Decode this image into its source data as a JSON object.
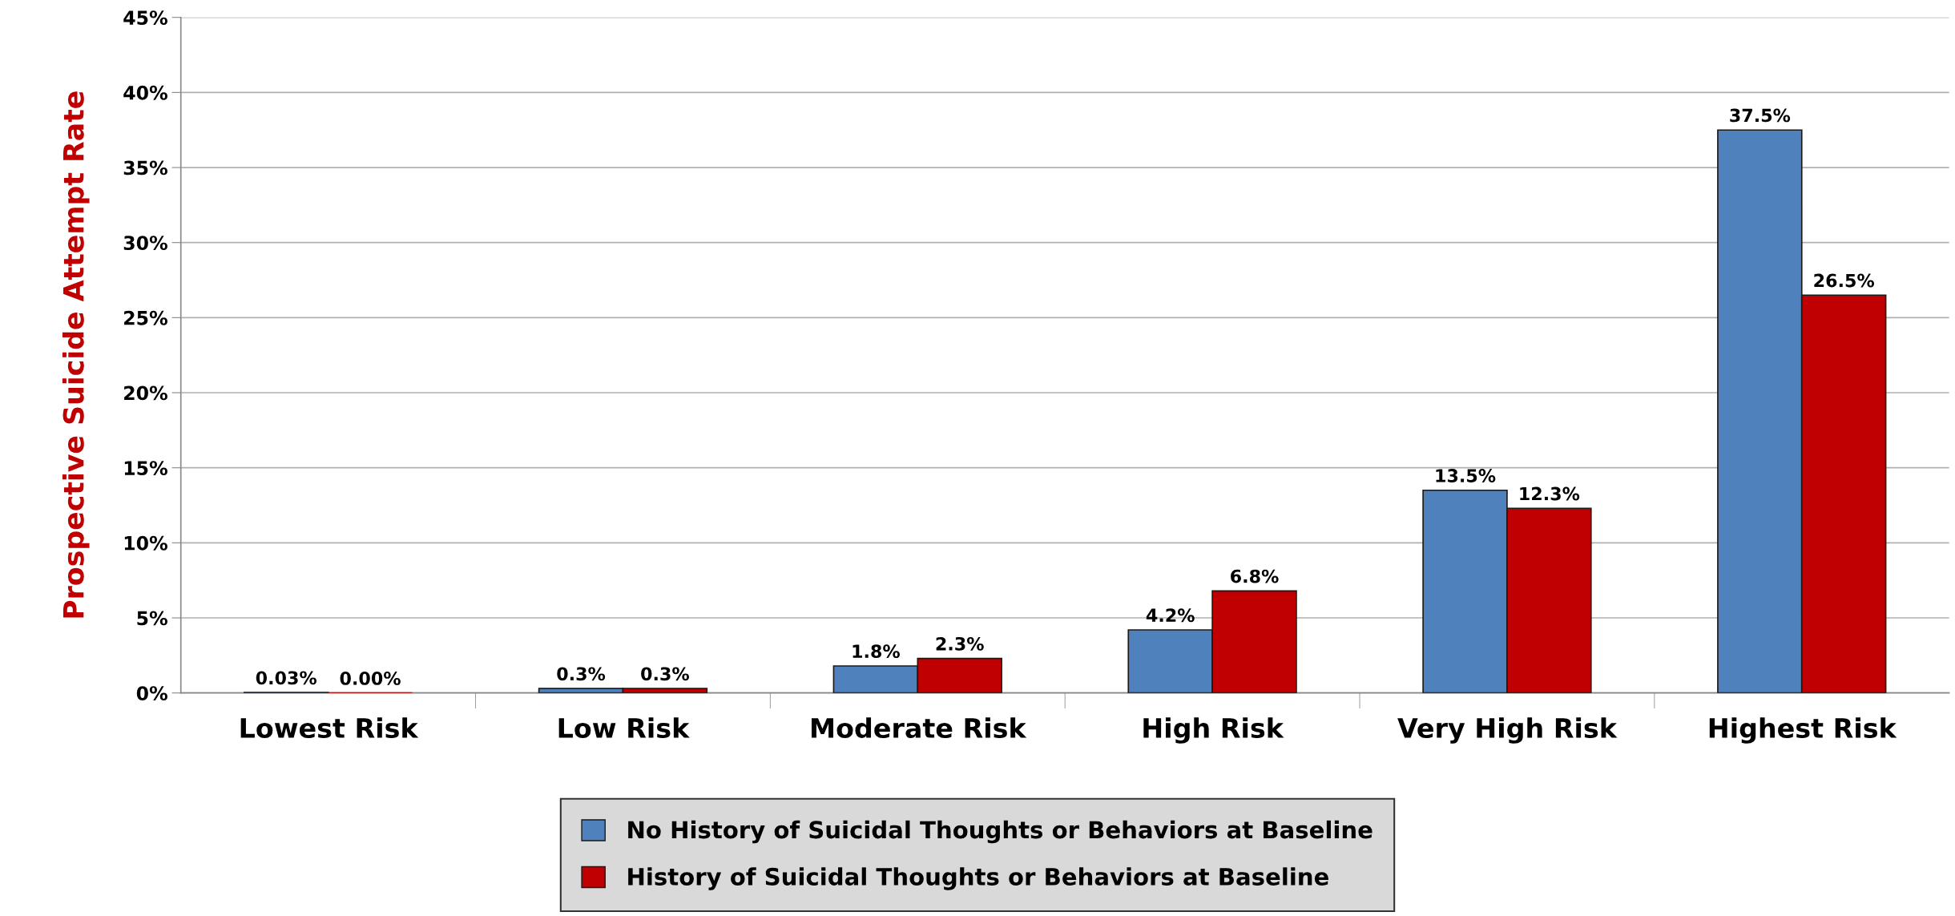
{
  "chart_data": {
    "type": "bar",
    "ylabel": "Prospective Suicide Attempt Rate",
    "categories": [
      "Lowest Risk",
      "Low Risk",
      "Moderate Risk",
      "High Risk",
      "Very High Risk",
      "Highest Risk"
    ],
    "series": [
      {
        "name": "No History of Suicidal Thoughts or Behaviors at Baseline",
        "color": "#4f81bd",
        "values": [
          0.03,
          0.3,
          1.8,
          4.2,
          13.5,
          37.5
        ],
        "value_labels": [
          "0.03%",
          "0.3%",
          "1.8%",
          "4.2%",
          "13.5%",
          "37.5%"
        ]
      },
      {
        "name": "History of Suicidal Thoughts or Behaviors at Baseline",
        "color": "#c00000",
        "values": [
          0.0,
          0.3,
          2.3,
          6.8,
          12.3,
          26.5
        ],
        "value_labels": [
          "0.00%",
          "0.3%",
          "2.3%",
          "6.8%",
          "12.3%",
          "26.5%"
        ]
      }
    ],
    "ylim": [
      0,
      45
    ],
    "yticks": [
      {
        "value": 0,
        "label": "0%"
      },
      {
        "value": 5,
        "label": "5%"
      },
      {
        "value": 10,
        "label": "10%"
      },
      {
        "value": 15,
        "label": "15%"
      },
      {
        "value": 20,
        "label": "20%"
      },
      {
        "value": 25,
        "label": "25%"
      },
      {
        "value": 30,
        "label": "30%"
      },
      {
        "value": 35,
        "label": "35%"
      },
      {
        "value": 40,
        "label": "40%"
      },
      {
        "value": 45,
        "label": "45%"
      }
    ],
    "grid": "y",
    "legend": "bottom"
  }
}
